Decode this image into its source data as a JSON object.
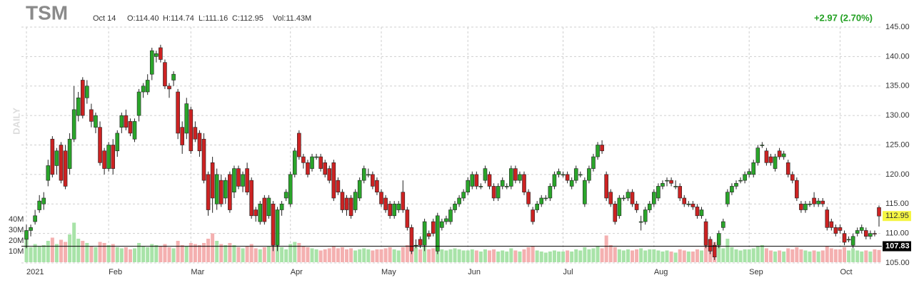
{
  "chart_data": {
    "type": "candlestick",
    "header": {
      "symbol": "TSM",
      "date": "Oct 14",
      "open": "O:114.40",
      "high": "H:114.74",
      "low": "L:111.16",
      "close": "C:112.95",
      "volume": "Vol:11.43M",
      "change": "+2.97 (2.70%)"
    },
    "period_label": "DAILY",
    "up_color": "#2aa52a",
    "down_color": "#cc2222",
    "volume_up_color": "#a8e3a8",
    "volume_down_color": "#f4b0b0",
    "change_color": "#22a022",
    "ylim": [
      105,
      145
    ],
    "yticks": [
      {
        "value": 105,
        "label": "105.00"
      },
      {
        "value": 110,
        "label": "110.00"
      },
      {
        "value": 115,
        "label": "115.00"
      },
      {
        "value": 120,
        "label": "120.00"
      },
      {
        "value": 125,
        "label": "125.00"
      },
      {
        "value": 130,
        "label": "130.00"
      },
      {
        "value": 135,
        "label": "135.00"
      },
      {
        "value": 140,
        "label": "140.00"
      },
      {
        "value": 145,
        "label": "145.00"
      }
    ],
    "vlim": [
      0,
      40
    ],
    "vticks": [
      {
        "value": 10,
        "label": "10M"
      },
      {
        "value": 20,
        "label": "20M"
      },
      {
        "value": 30,
        "label": "30M"
      },
      {
        "value": 40,
        "label": "40M"
      }
    ],
    "grid": true,
    "x_labels": [
      {
        "index": 0,
        "label": "2021"
      },
      {
        "index": 19,
        "label": "Feb"
      },
      {
        "index": 38,
        "label": "Mar"
      },
      {
        "index": 61,
        "label": "Apr"
      },
      {
        "index": 82,
        "label": "May"
      },
      {
        "index": 102,
        "label": "Jun"
      },
      {
        "index": 124,
        "label": "Jul"
      },
      {
        "index": 145,
        "label": "Aug"
      },
      {
        "index": 167,
        "label": "Sep"
      },
      {
        "index": 188,
        "label": "Oct"
      }
    ],
    "reference_line": {
      "value": 107.83,
      "label": "107.83"
    },
    "last_price": {
      "value": 112.95,
      "label": "112.95"
    },
    "ohlc": [
      [
        109,
        111.5,
        107.5,
        110.5
      ],
      [
        110.5,
        111.5,
        109.5,
        111
      ],
      [
        112,
        114,
        111.5,
        113
      ],
      [
        114,
        116.5,
        113.5,
        115.5
      ],
      [
        115,
        117,
        114,
        116
      ],
      [
        119,
        122.5,
        118,
        121.5
      ],
      [
        126,
        126.5,
        119.5,
        120
      ],
      [
        121.5,
        124.5,
        120,
        124
      ],
      [
        125,
        125.5,
        118.5,
        119
      ],
      [
        124,
        125,
        117.5,
        118
      ],
      [
        121,
        127,
        120,
        126
      ],
      [
        126,
        135,
        125.5,
        131
      ],
      [
        130,
        134,
        129,
        133
      ],
      [
        136,
        136.5,
        129.5,
        130
      ],
      [
        133,
        136,
        132,
        135
      ],
      [
        131,
        132,
        128,
        129
      ],
      [
        128,
        130.5,
        127,
        130
      ],
      [
        128,
        129,
        121.5,
        122
      ],
      [
        124,
        124.5,
        120,
        121
      ],
      [
        121,
        125.5,
        120.5,
        125
      ],
      [
        125,
        126,
        120,
        121
      ],
      [
        124,
        127.5,
        123,
        127
      ],
      [
        128,
        130.5,
        127,
        130
      ],
      [
        130,
        131,
        127.5,
        128
      ],
      [
        129,
        129.5,
        126.5,
        127
      ],
      [
        126,
        129.5,
        125.5,
        129
      ],
      [
        130,
        134.5,
        129,
        134
      ],
      [
        134,
        135.5,
        133,
        135
      ],
      [
        134,
        137,
        133.5,
        136
      ],
      [
        137,
        141.5,
        136,
        141
      ],
      [
        140,
        141,
        139,
        140.5
      ],
      [
        141.5,
        142,
        139,
        139.5
      ],
      [
        139,
        139.5,
        134.5,
        135
      ],
      [
        135,
        135.5,
        133,
        134.5
      ],
      [
        136,
        137.5,
        135,
        137
      ],
      [
        134,
        134.5,
        126,
        127
      ],
      [
        128,
        129,
        123.5,
        125
      ],
      [
        127,
        133,
        126,
        132
      ],
      [
        131,
        131.5,
        123.5,
        124
      ],
      [
        128,
        129,
        125.5,
        126
      ],
      [
        127,
        127.5,
        123,
        124
      ],
      [
        126,
        127,
        118.5,
        119
      ],
      [
        120,
        120.5,
        113,
        114
      ],
      [
        122,
        123,
        113.5,
        116
      ],
      [
        115,
        121,
        114,
        120
      ],
      [
        119,
        120,
        114.5,
        115
      ],
      [
        116,
        119.5,
        115,
        119
      ],
      [
        120,
        120.5,
        113.5,
        114
      ],
      [
        117,
        121.5,
        116,
        121
      ],
      [
        121,
        121.5,
        117.5,
        118
      ],
      [
        118,
        120.5,
        117,
        120
      ],
      [
        121,
        122,
        116.5,
        117
      ],
      [
        119,
        119.5,
        112.5,
        113
      ],
      [
        114,
        114.5,
        112,
        113
      ],
      [
        112,
        115.5,
        111.5,
        115
      ],
      [
        116,
        116.5,
        111.5,
        112
      ],
      [
        113,
        116.5,
        112.5,
        116
      ],
      [
        115,
        115.5,
        107,
        108
      ],
      [
        108,
        114.5,
        107,
        114
      ],
      [
        114,
        115.5,
        113,
        115
      ],
      [
        116,
        117.5,
        115.5,
        117
      ],
      [
        115,
        120.5,
        114.5,
        120
      ],
      [
        120,
        124.5,
        119.5,
        124
      ],
      [
        127,
        127.5,
        122.5,
        123
      ],
      [
        123,
        123.5,
        121,
        122
      ],
      [
        122,
        122.5,
        119.5,
        120
      ],
      [
        121,
        123.5,
        120.5,
        123
      ],
      [
        123,
        123.5,
        122.5,
        123
      ],
      [
        123,
        123.5,
        120.5,
        121
      ],
      [
        122,
        122.5,
        119.5,
        120
      ],
      [
        121,
        121.5,
        118.5,
        119
      ],
      [
        122,
        122.5,
        115.5,
        116
      ],
      [
        119,
        119.5,
        116.5,
        117
      ],
      [
        117,
        117.5,
        113.5,
        114
      ],
      [
        116,
        116.5,
        113,
        114
      ],
      [
        116,
        116.5,
        112.5,
        113
      ],
      [
        114,
        117.5,
        113.5,
        117
      ],
      [
        116,
        119.5,
        115.5,
        119
      ],
      [
        119,
        121.5,
        118.5,
        121
      ],
      [
        120,
        121,
        119.5,
        120
      ],
      [
        120,
        120.5,
        117.5,
        118
      ],
      [
        119,
        119.5,
        116.5,
        117
      ],
      [
        117,
        117.5,
        114.5,
        115
      ],
      [
        116,
        116.5,
        113.5,
        114
      ],
      [
        115,
        115.5,
        112.5,
        113
      ],
      [
        113,
        115.5,
        112.5,
        115
      ],
      [
        114,
        115.5,
        113.5,
        115
      ],
      [
        117,
        119,
        113.5,
        114
      ],
      [
        114,
        114.5,
        110.5,
        111
      ],
      [
        111,
        111.5,
        106.5,
        107
      ],
      [
        108,
        109,
        107.5,
        108
      ],
      [
        109,
        109.5,
        107.5,
        108
      ],
      [
        108,
        112.5,
        107,
        112
      ],
      [
        110,
        110.5,
        109,
        109.5
      ],
      [
        112,
        112.5,
        109.5,
        110
      ],
      [
        107,
        113.5,
        106.5,
        113
      ],
      [
        111,
        112.5,
        110.5,
        112
      ],
      [
        112,
        113,
        111.5,
        112.5
      ],
      [
        112,
        114.5,
        111.5,
        114
      ],
      [
        114,
        115.5,
        113.5,
        115
      ],
      [
        115,
        116.5,
        114.5,
        116
      ],
      [
        116,
        117.5,
        115.5,
        117
      ],
      [
        117,
        119.5,
        116.5,
        119
      ],
      [
        118,
        120.5,
        117.5,
        120
      ],
      [
        120,
        120.5,
        117.5,
        118
      ],
      [
        118,
        118.5,
        117.5,
        118
      ],
      [
        119,
        121.5,
        118.5,
        121
      ],
      [
        120,
        120.5,
        117.5,
        118
      ],
      [
        118,
        118.5,
        115.5,
        116
      ],
      [
        116,
        118.5,
        115.5,
        118
      ],
      [
        118,
        119.5,
        117.5,
        119
      ],
      [
        118,
        118.5,
        117.5,
        118
      ],
      [
        118,
        121.5,
        117.5,
        121
      ],
      [
        121,
        121.5,
        118.5,
        119
      ],
      [
        119,
        120.5,
        118.5,
        120
      ],
      [
        120,
        120.5,
        116.5,
        117
      ],
      [
        117,
        117.5,
        114.5,
        115
      ],
      [
        114,
        114.5,
        111.5,
        112
      ],
      [
        114,
        115.5,
        113.5,
        115
      ],
      [
        115,
        116.5,
        114.5,
        116
      ],
      [
        116,
        116.5,
        115.5,
        116
      ],
      [
        116,
        118.5,
        115.5,
        118
      ],
      [
        118,
        120.5,
        117.5,
        120
      ],
      [
        120,
        121,
        119.5,
        120.5
      ],
      [
        120,
        120.5,
        119.5,
        120
      ],
      [
        120,
        120.5,
        118.5,
        119
      ],
      [
        118,
        119.5,
        117.5,
        119
      ],
      [
        119,
        121.5,
        118.5,
        121
      ],
      [
        120,
        120.5,
        119.5,
        120
      ],
      [
        115,
        119.5,
        114.5,
        119
      ],
      [
        119,
        121.5,
        118.5,
        121
      ],
      [
        121,
        123.5,
        120.5,
        123
      ],
      [
        123,
        125.5,
        122.5,
        125
      ],
      [
        125,
        125.8,
        123.5,
        124
      ],
      [
        120,
        120.5,
        115.5,
        116
      ],
      [
        117,
        117.5,
        114.5,
        115
      ],
      [
        115,
        115.5,
        111.5,
        112
      ],
      [
        113,
        116.5,
        112.5,
        116
      ],
      [
        116,
        116.5,
        115.5,
        116
      ],
      [
        116,
        117.5,
        115.5,
        117
      ],
      [
        117,
        117.5,
        114.5,
        115
      ],
      [
        115,
        115.5,
        113.5,
        114
      ],
      [
        112,
        113,
        110.5,
        112
      ],
      [
        112,
        114.5,
        111.5,
        114
      ],
      [
        114,
        115.5,
        113.5,
        115
      ],
      [
        115,
        117.5,
        114.5,
        117
      ],
      [
        116,
        118.5,
        115.5,
        118
      ],
      [
        118,
        119,
        117.5,
        118.5
      ],
      [
        119,
        119.5,
        118,
        119
      ],
      [
        119,
        119.5,
        118,
        118.5
      ],
      [
        118,
        119,
        117.5,
        118
      ],
      [
        118,
        118.5,
        115.5,
        116
      ],
      [
        116,
        116.5,
        114.5,
        115
      ],
      [
        115,
        115.5,
        114.5,
        115
      ],
      [
        115,
        115.5,
        114,
        114.5
      ],
      [
        114.5,
        115,
        112.5,
        113
      ],
      [
        113,
        114.5,
        112.5,
        114
      ],
      [
        112,
        112.5,
        107.5,
        108
      ],
      [
        109,
        109.5,
        106.5,
        107
      ],
      [
        108,
        108.5,
        105.5,
        106
      ],
      [
        108,
        110.5,
        107.5,
        110
      ],
      [
        111,
        112.5,
        110.5,
        112
      ],
      [
        115,
        117.5,
        114.5,
        117
      ],
      [
        117,
        118.5,
        116.5,
        118
      ],
      [
        118,
        119,
        117.5,
        118.5
      ],
      [
        119,
        119.5,
        118.5,
        119
      ],
      [
        119,
        120.5,
        118.5,
        120
      ],
      [
        120,
        121,
        119.5,
        120.5
      ],
      [
        120,
        122.5,
        119.5,
        122
      ],
      [
        122,
        125,
        121.5,
        124.5
      ],
      [
        125,
        125.5,
        124.5,
        125
      ],
      [
        124,
        124.5,
        121.5,
        122
      ],
      [
        123,
        123.5,
        121.5,
        122
      ],
      [
        121,
        123.5,
        120.5,
        123
      ],
      [
        124,
        124.5,
        122.5,
        123
      ],
      [
        123,
        124,
        122.5,
        123.5
      ],
      [
        122,
        122.5,
        119.5,
        120
      ],
      [
        120,
        120.5,
        118.5,
        119
      ],
      [
        119,
        119.5,
        115.5,
        116
      ],
      [
        115,
        115.5,
        113.5,
        114
      ],
      [
        114,
        115.5,
        113.5,
        115
      ],
      [
        115,
        115.5,
        114.5,
        115
      ],
      [
        116,
        117,
        114.5,
        115
      ],
      [
        115,
        116,
        114.5,
        115.5
      ],
      [
        115.5,
        116,
        114.5,
        115
      ],
      [
        114,
        114.5,
        110.5,
        111
      ],
      [
        112,
        112.5,
        110.5,
        111
      ],
      [
        111,
        111.5,
        109.5,
        110
      ],
      [
        111,
        111.5,
        110,
        110.5
      ],
      [
        110,
        110.5,
        108,
        108.5
      ],
      [
        109,
        109.5,
        108.5,
        109
      ],
      [
        108,
        110,
        107.5,
        109.5
      ],
      [
        110,
        111,
        109.5,
        110.5
      ],
      [
        110.5,
        111.5,
        110,
        111
      ],
      [
        110.5,
        111,
        109,
        109.5
      ],
      [
        109.5,
        110.5,
        109,
        110
      ],
      [
        110,
        110.5,
        109.5,
        109.98
      ],
      [
        114.4,
        114.74,
        111.16,
        112.95
      ]
    ],
    "volume": [
      22,
      14,
      17,
      15,
      16,
      20,
      23,
      17,
      21,
      19,
      26,
      37,
      22,
      20,
      18,
      15,
      14,
      19,
      18,
      16,
      17,
      14,
      13,
      14,
      12,
      13,
      18,
      15,
      14,
      17,
      16,
      15,
      17,
      14,
      13,
      20,
      16,
      15,
      18,
      17,
      16,
      18,
      22,
      27,
      20,
      17,
      16,
      18,
      16,
      14,
      13,
      15,
      17,
      13,
      12,
      14,
      15,
      24,
      20,
      14,
      12,
      17,
      19,
      18,
      15,
      14,
      13,
      12,
      11,
      12,
      13,
      15,
      13,
      14,
      12,
      13,
      11,
      12,
      13,
      12,
      11,
      12,
      12,
      13,
      14,
      12,
      11,
      14,
      16,
      19,
      14,
      12,
      15,
      12,
      13,
      16,
      12,
      11,
      12,
      13,
      12,
      11,
      11,
      12,
      11,
      10,
      12,
      11,
      12,
      10,
      11,
      10,
      13,
      11,
      10,
      12,
      14,
      15,
      11,
      10,
      9,
      10,
      11,
      10,
      10,
      11,
      10,
      12,
      11,
      14,
      12,
      13,
      15,
      13,
      25,
      16,
      14,
      12,
      11,
      12,
      11,
      12,
      13,
      11,
      12,
      12,
      11,
      10,
      11,
      10,
      9,
      12,
      11,
      10,
      10,
      12,
      11,
      16,
      18,
      19,
      15,
      13,
      22,
      14,
      12,
      11,
      12,
      12,
      13,
      15,
      16,
      13,
      11,
      10,
      11,
      10,
      13,
      12,
      14,
      12,
      11,
      10,
      11,
      10,
      11,
      15,
      13,
      12,
      12,
      14,
      11,
      13,
      11,
      10,
      11,
      10,
      12,
      11.43
    ]
  }
}
